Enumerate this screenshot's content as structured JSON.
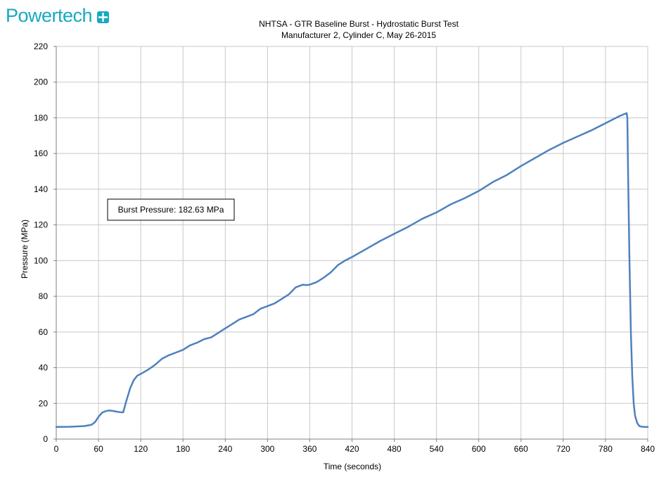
{
  "brand": {
    "name": "Powertech",
    "logo_icon": "plus-cross-icon",
    "color": "#18a9c2"
  },
  "colors": {
    "line": "#4f81bd",
    "grid": "#c8c8c8",
    "axis": "#7f7f7f"
  },
  "chart_data": {
    "type": "line",
    "title": "NHTSA - GTR Baseline Burst  -  Hydrostatic Burst Test",
    "subtitle": "Manufacturer  2, Cylinder C,  May 26-2015",
    "xlabel": "Time (seconds)",
    "ylabel": "Pressure (MPa)",
    "xlim": [
      0,
      840
    ],
    "ylim": [
      0,
      220
    ],
    "x_ticks": [
      "0",
      "60",
      "120",
      "180",
      "240",
      "300",
      "360",
      "420",
      "480",
      "540",
      "600",
      "660",
      "720",
      "780",
      "840"
    ],
    "y_ticks": [
      "0",
      "20",
      "40",
      "60",
      "80",
      "100",
      "120",
      "140",
      "160",
      "180",
      "200",
      "220"
    ],
    "grid": true,
    "annotation": "Burst Pressure:  182.63 MPa",
    "series": [
      {
        "x": [
          0,
          20,
          40,
          50,
          55,
          60,
          65,
          70,
          75,
          80,
          85,
          90,
          95,
          100,
          105,
          110,
          115,
          120,
          130,
          140,
          150,
          160,
          170,
          180,
          190,
          200,
          210,
          220,
          230,
          240,
          250,
          260,
          270,
          280,
          290,
          300,
          310,
          320,
          330,
          340,
          350,
          355,
          360,
          370,
          380,
          390,
          400,
          410,
          420,
          440,
          460,
          480,
          500,
          520,
          540,
          560,
          580,
          600,
          620,
          640,
          660,
          680,
          700,
          720,
          740,
          760,
          780,
          800,
          810,
          811,
          812,
          814,
          816,
          818,
          820,
          822,
          825,
          828,
          832,
          836,
          840
        ],
        "y": [
          6.8,
          6.9,
          7.3,
          8.0,
          9.5,
          12.5,
          14.8,
          15.7,
          16.0,
          15.8,
          15.4,
          15.1,
          15.0,
          22.0,
          28.5,
          33.0,
          35.5,
          36.5,
          38.8,
          41.5,
          45.0,
          47.0,
          48.5,
          50.0,
          52.5,
          54.0,
          56.0,
          57.0,
          59.5,
          62.0,
          64.5,
          67.0,
          68.5,
          70.0,
          73.0,
          74.5,
          76.0,
          78.5,
          81.0,
          85.0,
          86.5,
          86.3,
          86.5,
          88.0,
          90.5,
          93.5,
          97.5,
          100.0,
          102.0,
          106.5,
          111.0,
          115.0,
          119.0,
          123.5,
          127.0,
          131.5,
          135.0,
          139.0,
          144.0,
          148.0,
          153.0,
          157.5,
          162.0,
          166.0,
          169.5,
          173.0,
          177.0,
          181.0,
          182.63,
          180.0,
          150.0,
          100.0,
          60.0,
          35.0,
          20.0,
          13.0,
          9.0,
          7.3,
          6.9,
          6.8,
          6.8
        ]
      }
    ]
  }
}
